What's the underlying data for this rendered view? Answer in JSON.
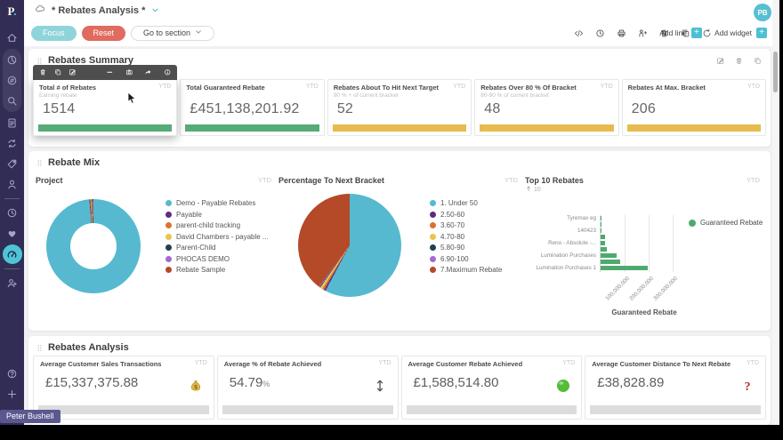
{
  "titlebar": {
    "title": "* Rebates Analysis *",
    "avatar": "PB"
  },
  "controls": {
    "focus": "Focus",
    "reset": "Reset",
    "goto": "Go to section",
    "add_line": "Add line",
    "add_widget": "Add widget",
    "plus": "+",
    "tool_icons": [
      "code",
      "clock",
      "printer",
      "presenter",
      "trash",
      "copy",
      "refresh"
    ]
  },
  "sidebar": {
    "logo": "P",
    "logo_dot": ".",
    "items": [
      {
        "id": "home",
        "icon": "home"
      },
      {
        "id": "explore",
        "icon": "pie",
        "group": "charts"
      },
      {
        "id": "analytics",
        "icon": "compass",
        "group": "charts"
      },
      {
        "id": "search",
        "icon": "search",
        "group": "charts"
      },
      {
        "id": "reports",
        "icon": "document"
      },
      {
        "id": "sync",
        "icon": "sync"
      },
      {
        "id": "tags",
        "icon": "tag"
      },
      {
        "id": "customers",
        "icon": "person"
      },
      {
        "id": "divider1",
        "divider": true
      },
      {
        "id": "history",
        "icon": "clock"
      },
      {
        "id": "favorites",
        "icon": "heart"
      },
      {
        "id": "dashboards",
        "icon": "gauge",
        "active": true
      },
      {
        "id": "divider2",
        "divider": true
      },
      {
        "id": "user-management",
        "icon": "person-add"
      },
      {
        "id": "spacer",
        "spacer": true
      },
      {
        "id": "help",
        "icon": "help"
      },
      {
        "id": "add-new",
        "icon": "plus"
      },
      {
        "id": "feedback",
        "icon": "chat"
      }
    ]
  },
  "user_tooltip": "Peter Bushell",
  "summary": {
    "title": "Rebates Summary",
    "section_action_icons": [
      "edit",
      "trash",
      "copy"
    ],
    "card_toolbar_icons": [
      "trash",
      "copy",
      "edit",
      "minus",
      "camera",
      "share",
      "info"
    ],
    "cards": [
      {
        "title": "Total # of Rebates",
        "subtitle": "Earning rebate",
        "period": "YTD",
        "value": "1514",
        "bar_color": "#57ab77",
        "hovered": true
      },
      {
        "title": "Total Guaranteed Rebate",
        "subtitle": "",
        "period": "YTD",
        "value": "£451,138,201.92",
        "bar_color": "#57ab77"
      },
      {
        "title": "Rebates About To Hit Next Target",
        "subtitle": "90 % + of current bracket",
        "period": "YTD",
        "value": "52",
        "bar_color": "#e7bb4e"
      },
      {
        "title": "Rebates Over 80 % Of Bracket",
        "subtitle": "80-90 % of current bracket",
        "period": "YTD",
        "value": "48",
        "bar_color": "#e7bb4e"
      },
      {
        "title": "Rebates At Max. Bracket",
        "subtitle": "",
        "period": "YTD",
        "value": "206",
        "bar_color": "#e7bb4e"
      }
    ]
  },
  "mix": {
    "title": "Rebate Mix"
  },
  "analysis": {
    "title": "Rebates Analysis",
    "cards": [
      {
        "title": "Average Customer Sales Transactions",
        "period": "YTD",
        "value": "£15,337,375.88",
        "suffix": "",
        "icon": "money-bag"
      },
      {
        "title": "Average % of Rebate Achieved",
        "period": "YTD",
        "value": "54.79",
        "suffix": "%",
        "icon": "up-down-arrows"
      },
      {
        "title": "Average Customer Rebate Achieved",
        "period": "YTD",
        "value": "£1,588,514.80",
        "suffix": "",
        "icon": "green-circle"
      },
      {
        "title": "Average Customer Distance To Next Rebate",
        "period": "YTD",
        "value": "£38,828.89",
        "suffix": "",
        "icon": "red-question"
      }
    ]
  },
  "chart_data": [
    {
      "type": "pie",
      "subtype": "donut",
      "title": "Project",
      "period": "YTD",
      "legend_position": "right",
      "labels": [
        "Demo - Payable Rebates",
        "Payable",
        "parent-child tracking",
        "David Chambers - payable ...",
        "Parent-Child",
        "PHOCAS DEMO",
        "Rebate Sample"
      ],
      "values_pct": [
        98.6,
        0.25,
        0.3,
        0.3,
        0.2,
        0.15,
        0.2
      ],
      "colors": [
        "#56b9d0",
        "#5a2d87",
        "#dd7230",
        "#ecc44d",
        "#22404f",
        "#a468d5",
        "#b44a28"
      ]
    },
    {
      "type": "pie",
      "title": "Percentage To Next Bracket",
      "period": "YTD",
      "legend_position": "right",
      "labels": [
        "1. Under 50",
        "2.50-60",
        "3.60-70",
        "4.70-80",
        "5.80-90",
        "6.90-100",
        "7.Maximum Rebate"
      ],
      "values_pct": [
        57.8,
        0.5,
        0.6,
        0.8,
        0.2,
        0.3,
        39.8
      ],
      "colors": [
        "#56b9d0",
        "#5a2d87",
        "#dd7230",
        "#ecc44d",
        "#22404f",
        "#a468d5",
        "#b44a28"
      ]
    },
    {
      "type": "bar",
      "orientation": "horizontal",
      "title": "Top 10 Rebates",
      "limit": "10",
      "period": "YTD",
      "series_name": "Guaranteed Rebate",
      "xlabel": "Guaranteed Rebate",
      "bar_color": "#4fa96f",
      "categories": [
        "Tyremax eg",
        "",
        "140423",
        "",
        "Reno - Absolute -...",
        "",
        "Lumination Purchases",
        "",
        "Lumination Purchases 1"
      ],
      "values_millions": [
        1,
        2,
        3,
        19,
        19,
        26,
        67,
        82,
        195
      ],
      "x_ticks": [
        "100,000,000",
        "200,000,000",
        "300,000,000"
      ],
      "x_max_millions": 370,
      "grid": true
    }
  ]
}
